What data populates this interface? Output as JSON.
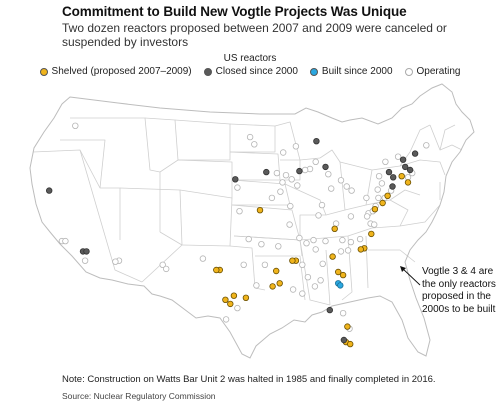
{
  "header": {
    "title": "Commitment to Build New Vogtle Projects Was Unique",
    "subtitle": "Two dozen reactors proposed between 2007 and 2009 were canceled or suspended by investors"
  },
  "legend": {
    "title": "US reactors",
    "items": [
      {
        "key": "shelved",
        "label": "Shelved (proposed 2007–2009)",
        "color": "#f0b41c"
      },
      {
        "key": "closed",
        "label": "Closed since 2000",
        "color": "#5a5a5a"
      },
      {
        "key": "built",
        "label": "Built since 2000",
        "color": "#2aa7e0"
      },
      {
        "key": "operating",
        "label": "Operating",
        "color": "#ffffff"
      }
    ]
  },
  "annotation": {
    "text": "Vogtle 3 & 4 are the only reactors proposed in the 2000s to be built"
  },
  "footer": {
    "note": "Note: Construction on Watts Bar Unit 2 was halted in 1985 and finally completed in 2016.",
    "source": "Source: Nuclear Regulatory Commission"
  },
  "map_data": {
    "colors": {
      "land": "#ffffff",
      "border": "#cfcfcf",
      "outline": "#bdbdbd"
    },
    "shelved": [
      [
        -72.7,
        41.6
      ],
      [
        -71.8,
        41.0
      ],
      [
        -74.7,
        39.7
      ],
      [
        -75.4,
        39.0
      ],
      [
        -76.5,
        38.4
      ],
      [
        -77.0,
        36.0
      ],
      [
        -78.0,
        34.6
      ],
      [
        -78.5,
        34.5
      ],
      [
        -81.0,
        32.0
      ],
      [
        -81.7,
        32.3
      ],
      [
        -80.4,
        27.0
      ],
      [
        -80.6,
        25.5
      ],
      [
        -80.0,
        25.3
      ],
      [
        -87.7,
        33.4
      ],
      [
        -88.2,
        33.4
      ],
      [
        -90.5,
        32.4
      ],
      [
        -91.0,
        30.9
      ],
      [
        -90.0,
        31.2
      ],
      [
        -94.8,
        29.8
      ],
      [
        -96.5,
        30.0
      ],
      [
        -97.0,
        29.2
      ],
      [
        -97.7,
        29.6
      ],
      [
        -98.5,
        32.5
      ],
      [
        -99.0,
        32.5
      ],
      [
        -92.8,
        38.3
      ],
      [
        -82.5,
        33.8
      ],
      [
        -82.2,
        36.5
      ]
    ],
    "closed": [
      [
        -70.8,
        43.8
      ],
      [
        -71.5,
        42.2
      ],
      [
        -72.2,
        42.5
      ],
      [
        -73.9,
        41.5
      ],
      [
        -74.0,
        40.6
      ],
      [
        -72.5,
        43.2
      ],
      [
        -74.5,
        42.0
      ],
      [
        -84.8,
        45.0
      ],
      [
        -87.2,
        42.1
      ],
      [
        -83.5,
        42.5
      ],
      [
        -91.9,
        42.0
      ],
      [
        -96.3,
        41.3
      ],
      [
        -122.7,
        40.2
      ],
      [
        -117.9,
        34.3
      ],
      [
        -117.4,
        34.3
      ],
      [
        -80.9,
        25.7
      ],
      [
        -82.9,
        28.6
      ]
    ],
    "built": [
      [
        -81.7,
        31.2
      ],
      [
        -81.4,
        31.0
      ]
    ],
    "operating": [
      [
        -71.8,
        41.5
      ],
      [
        -71.2,
        41.9
      ],
      [
        -74.2,
        40.2
      ],
      [
        -75.5,
        40.9
      ],
      [
        -75.1,
        39.5
      ],
      [
        -76.4,
        38.7
      ],
      [
        -77.7,
        39.5
      ],
      [
        -76.1,
        40.3
      ],
      [
        -80.5,
        40.6
      ],
      [
        -81.3,
        41.2
      ],
      [
        -83.1,
        41.8
      ],
      [
        -84.9,
        43.0
      ],
      [
        -85.7,
        42.3
      ],
      [
        -86.4,
        42.2
      ],
      [
        -87.7,
        44.5
      ],
      [
        -89.5,
        43.9
      ],
      [
        -88.3,
        41.3
      ],
      [
        -89.1,
        41.7
      ],
      [
        -90.4,
        41.9
      ],
      [
        -93.6,
        44.7
      ],
      [
        -94.2,
        45.4
      ],
      [
        -96.0,
        40.5
      ],
      [
        -95.7,
        38.2
      ],
      [
        -89.9,
        40.1
      ],
      [
        -89.6,
        41.0
      ],
      [
        -88.5,
        38.7
      ],
      [
        -87.2,
        35.6
      ],
      [
        -86.2,
        35.1
      ],
      [
        -85.2,
        35.4
      ],
      [
        -84.9,
        34.5
      ],
      [
        -83.5,
        35.3
      ],
      [
        -81.1,
        35.4
      ],
      [
        -79.9,
        35.2
      ],
      [
        -80.3,
        34.4
      ],
      [
        -81.3,
        34.3
      ],
      [
        -78.6,
        35.5
      ],
      [
        -77.1,
        37.0
      ],
      [
        -77.4,
        38.0
      ],
      [
        -76.6,
        36.9
      ],
      [
        -79.9,
        37.7
      ],
      [
        -82.0,
        37.0
      ],
      [
        -84.2,
        31.5
      ],
      [
        -85.0,
        30.9
      ],
      [
        -86.8,
        33.0
      ],
      [
        -88.6,
        36.9
      ],
      [
        -90.2,
        34.8
      ],
      [
        -92.6,
        35.0
      ],
      [
        -93.3,
        31.0
      ],
      [
        -92.1,
        33.0
      ],
      [
        -95.1,
        33.0
      ],
      [
        -96.0,
        28.8
      ],
      [
        -97.6,
        27.7
      ],
      [
        -100.9,
        33.6
      ],
      [
        -106.6,
        33.0
      ],
      [
        -106.1,
        32.6
      ],
      [
        -112.8,
        33.4
      ],
      [
        -113.3,
        33.3
      ],
      [
        -119.0,
        46.5
      ],
      [
        -120.9,
        35.3
      ],
      [
        -120.4,
        35.3
      ],
      [
        -117.6,
        33.4
      ],
      [
        -88.1,
        30.6
      ],
      [
        -86.8,
        30.2
      ],
      [
        -81.0,
        28.3
      ],
      [
        -80.1,
        26.8
      ],
      [
        -79.8,
        40.2
      ],
      [
        -87.5,
        40.7
      ],
      [
        -75.0,
        43.0
      ],
      [
        -73.2,
        43.5
      ],
      [
        -69.2,
        44.6
      ],
      [
        -76.0,
        39.5
      ],
      [
        -86.0,
        31.8
      ],
      [
        -84.5,
        37.8
      ],
      [
        -83.9,
        33.1
      ],
      [
        -94.4,
        35.5
      ],
      [
        -91.1,
        39.5
      ],
      [
        -77.6,
        37.7
      ],
      [
        -82.7,
        40.4
      ],
      [
        -84.0,
        38.8
      ],
      [
        -75.9,
        41.6
      ],
      [
        -76.8,
        38.2
      ]
    ]
  }
}
